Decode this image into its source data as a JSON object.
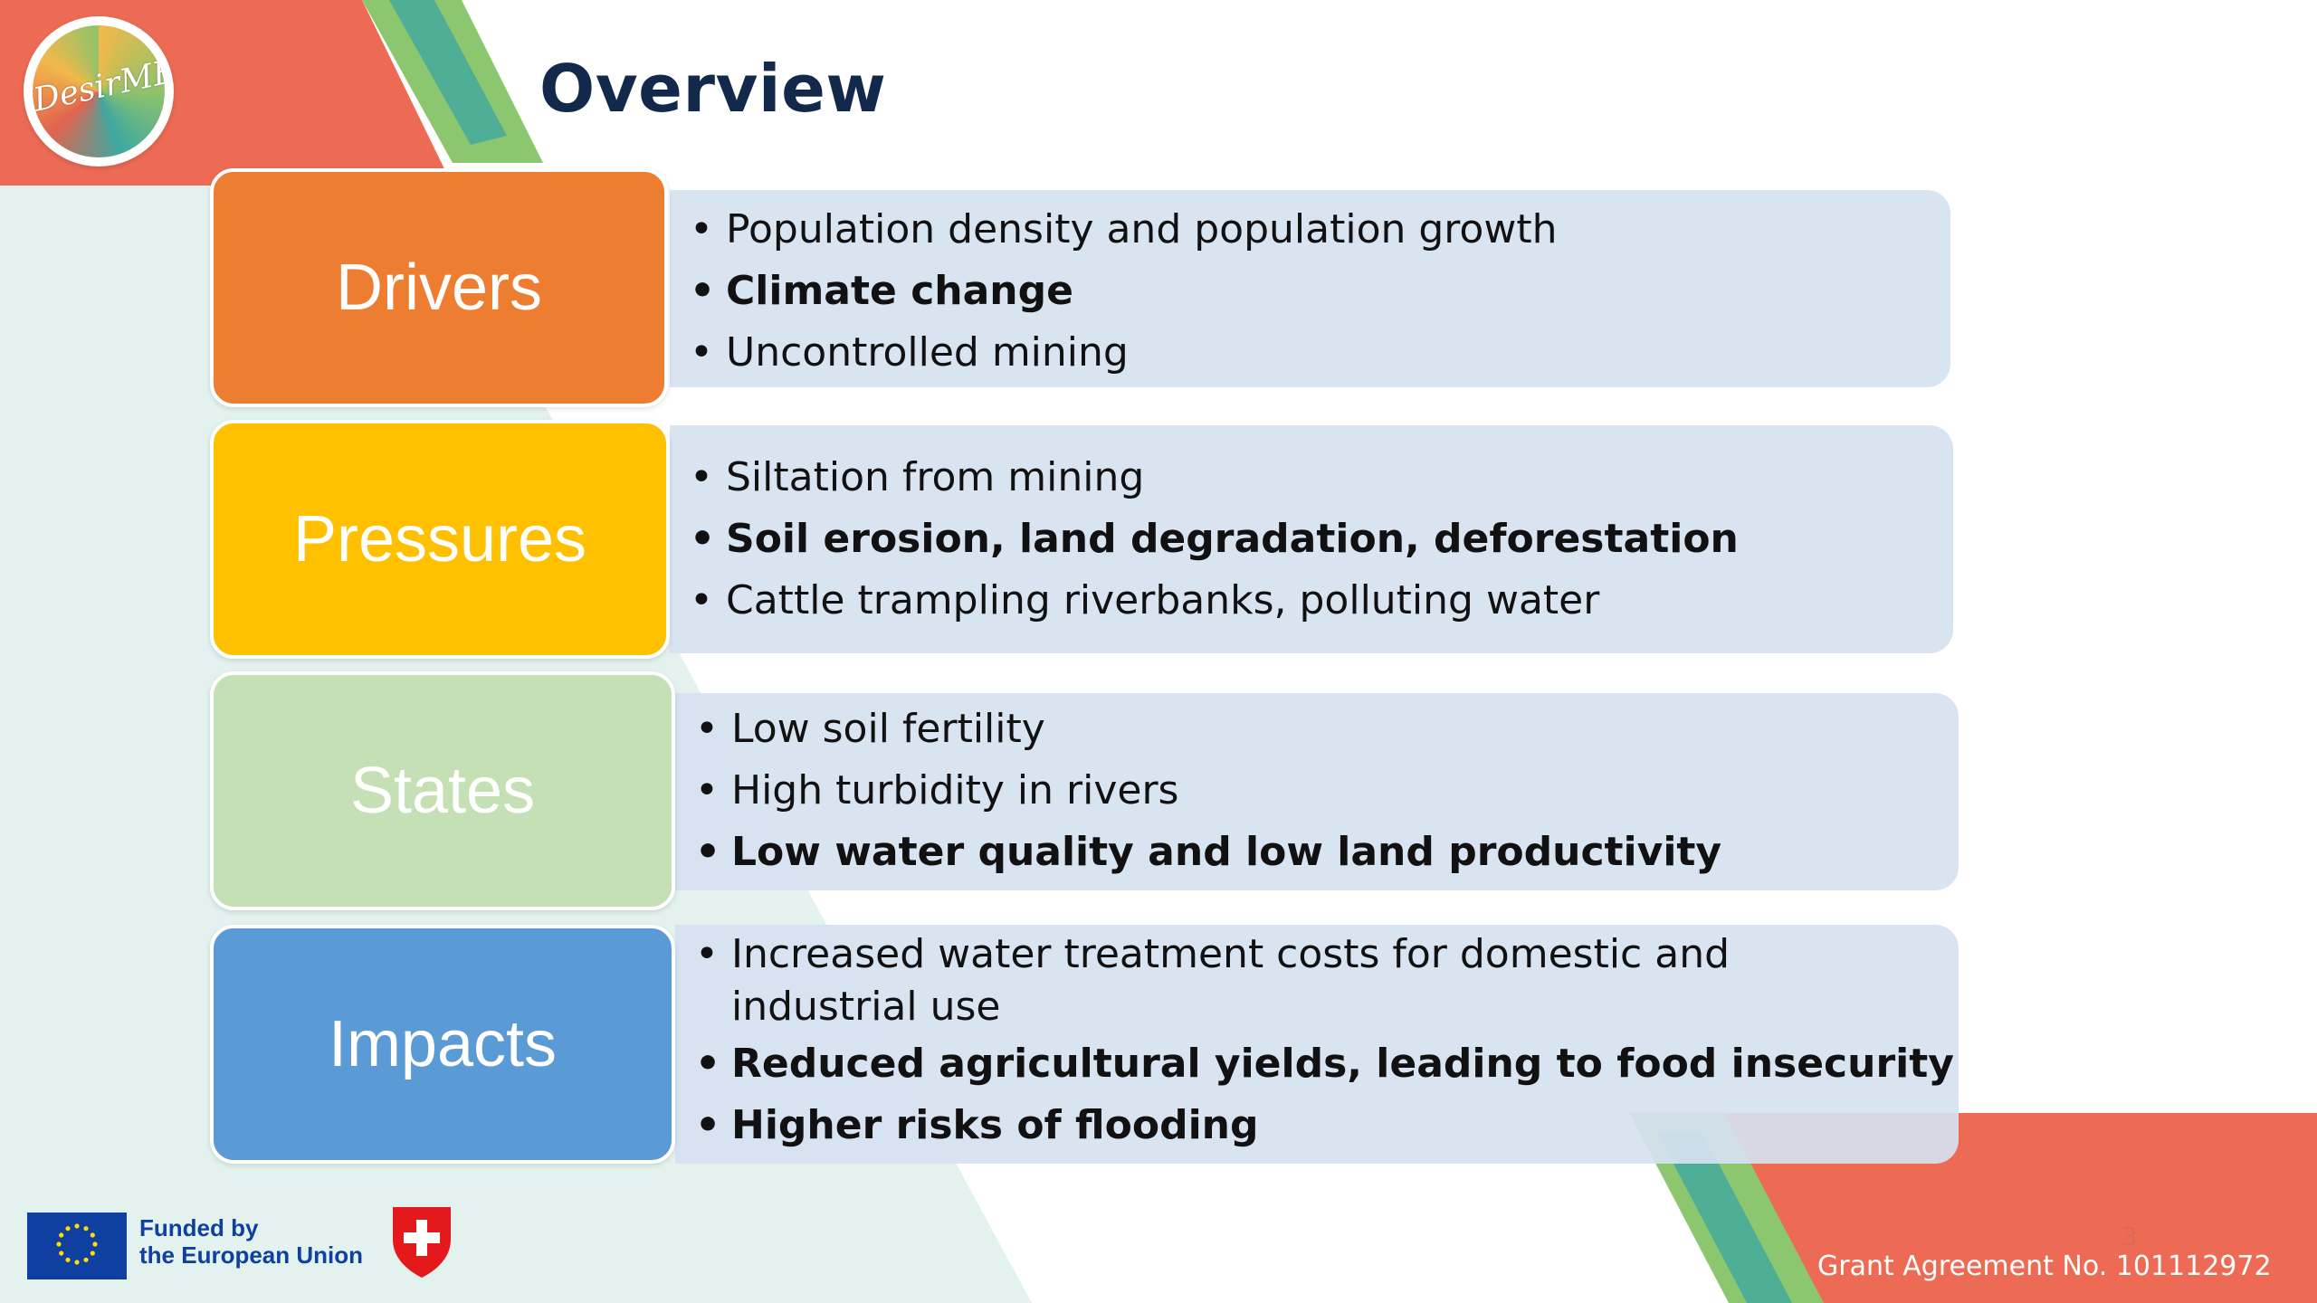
{
  "slide": {
    "title": "Overview",
    "logo_text": "DesirMED",
    "slide_number": "3"
  },
  "rows": [
    {
      "label": "Drivers",
      "color": "#ed7d31",
      "items": [
        {
          "text": "Population density and population growth",
          "bold": false
        },
        {
          "text": "Climate change",
          "bold": true
        },
        {
          "text": "Uncontrolled mining",
          "bold": false
        }
      ]
    },
    {
      "label": "Pressures",
      "color": "#ffc000",
      "items": [
        {
          "text": "Siltation from mining",
          "bold": false
        },
        {
          "text": "Soil erosion, land degradation, deforestation",
          "bold": true
        },
        {
          "text": "Cattle trampling riverbanks, polluting water",
          "bold": false
        }
      ]
    },
    {
      "label": "States",
      "color": "#c5e0b4",
      "items": [
        {
          "text": "Low soil fertility",
          "bold": false
        },
        {
          "text": "High turbidity in rivers",
          "bold": false
        },
        {
          "text": "Low water quality and low land productivity",
          "bold": true
        }
      ]
    },
    {
      "label": "Impacts",
      "color": "#5b9bd5",
      "items": [
        {
          "text": "Increased water treatment costs for domestic and industrial use",
          "bold": false
        },
        {
          "text": "Reduced agricultural yields, leading to food insecurity",
          "bold": true
        },
        {
          "text": "Higher risks of flooding",
          "bold": true
        }
      ]
    }
  ],
  "footer": {
    "eu_line1": "Funded by",
    "eu_line2": "the European Union",
    "grant": "Grant Agreement No. 101112972"
  },
  "colors": {
    "title": "#13294b",
    "coral": "#ed6b55",
    "mint": "#e3f2ee",
    "body_box": "#d6e2f0"
  }
}
